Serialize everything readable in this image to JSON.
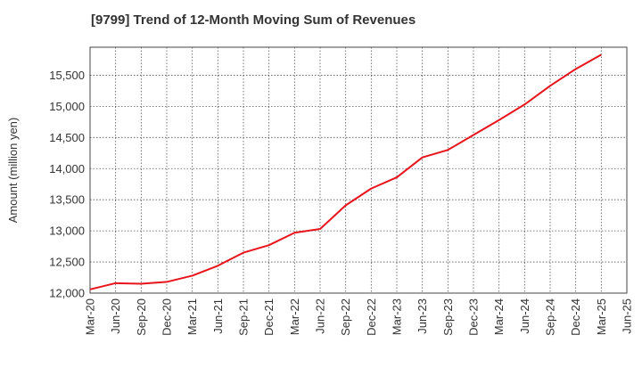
{
  "chart_data": {
    "type": "line",
    "title": "[9799]  Trend of 12-Month Moving Sum of Revenues",
    "xlabel": "",
    "ylabel": "Amount (million yen)",
    "x_tick_labels": [
      "Mar-20",
      "Jun-20",
      "Sep-20",
      "Dec-20",
      "Mar-21",
      "Jun-21",
      "Sep-21",
      "Dec-21",
      "Mar-22",
      "Jun-22",
      "Sep-22",
      "Dec-22",
      "Mar-23",
      "Jun-23",
      "Sep-23",
      "Dec-23",
      "Mar-24",
      "Jun-24",
      "Sep-24",
      "Dec-24",
      "Mar-25",
      "Jun-25"
    ],
    "y_ticks": [
      12000,
      12500,
      13000,
      13500,
      14000,
      14500,
      15000,
      15500
    ],
    "y_tick_labels": [
      "12,000",
      "12,500",
      "13,000",
      "13,500",
      "14,000",
      "14,500",
      "15,000",
      "15,500"
    ],
    "ylim": [
      12000,
      15950
    ],
    "grid": true,
    "series": [
      {
        "color": "#e8141b",
        "x": [
          "Mar-20",
          "Jun-20",
          "Sep-20",
          "Dec-20",
          "Mar-21",
          "Jun-21",
          "Sep-21",
          "Dec-21",
          "Mar-22",
          "Jun-22",
          "Sep-22",
          "Dec-22",
          "Mar-23",
          "Jun-23",
          "Sep-23",
          "Dec-23",
          "Mar-24",
          "Jun-24",
          "Sep-24",
          "Dec-24",
          "Mar-25"
        ],
        "values": [
          12060,
          12160,
          12150,
          12180,
          12280,
          12440,
          12650,
          12770,
          12970,
          13030,
          13410,
          13680,
          13860,
          14180,
          14300,
          14540,
          14780,
          15030,
          15330,
          15600,
          15830
        ]
      }
    ]
  }
}
